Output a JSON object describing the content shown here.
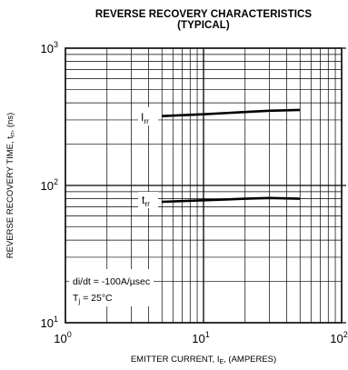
{
  "chart_data": {
    "type": "line",
    "title": "REVERSE RECOVERY CHARACTERISTICS",
    "subtitle": "(TYPICAL)",
    "xlabel": "EMITTER CURRENT, I_E, (AMPERES)",
    "ylabel": "REVERSE RECOVERY TIME, t_rr, (ns)",
    "x_scale": "log",
    "y_scale": "log",
    "xlim": [
      1,
      100
    ],
    "ylim": [
      10,
      1000
    ],
    "grid": true,
    "x_ticks": [
      {
        "value": 1,
        "base": "10",
        "exp": "0"
      },
      {
        "value": 10,
        "base": "10",
        "exp": "1"
      },
      {
        "value": 100,
        "base": "10",
        "exp": "2"
      }
    ],
    "y_ticks": [
      {
        "value": 10,
        "base": "10",
        "exp": "1"
      },
      {
        "value": 100,
        "base": "10",
        "exp": "2"
      },
      {
        "value": 1000,
        "base": "10",
        "exp": "3"
      }
    ],
    "series": [
      {
        "name": "Irr",
        "label_main": "I",
        "label_sub": "rr",
        "x": [
          5,
          10,
          20,
          30,
          50
        ],
        "y": [
          320,
          330,
          343,
          350,
          355
        ]
      },
      {
        "name": "trr",
        "label_main": "t",
        "label_sub": "rr",
        "x": [
          5,
          10,
          20,
          30,
          50
        ],
        "y": [
          76,
          78,
          80,
          81,
          80
        ]
      }
    ],
    "annotation": {
      "line1": "di/dt = -100A/µsec",
      "line2_main": "T",
      "line2_sub": "j",
      "line2_rest": " = 25°C"
    }
  }
}
